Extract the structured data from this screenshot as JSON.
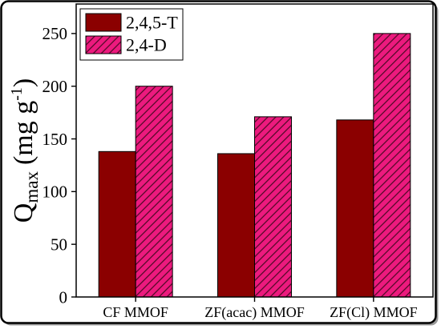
{
  "chart_data": {
    "type": "bar",
    "ylabel": {
      "base": "Q",
      "subscript": "max",
      "unit": "(mg g",
      "unit_superscript": "-1",
      "unit_close": ")"
    },
    "categories": [
      "CF MMOF",
      "ZF(acac) MMOF",
      "ZF(Cl) MMOF"
    ],
    "series": [
      {
        "name": "2,4,5-T",
        "values": [
          138,
          136,
          168
        ],
        "color": "#8B0000",
        "hatched": false
      },
      {
        "name": "2,4-D",
        "values": [
          200,
          171,
          250
        ],
        "color": "#EC1A7E",
        "hatched": true,
        "hatch_color": "#4A0822"
      }
    ],
    "ylim": [
      0,
      278
    ],
    "yticks": [
      0,
      50,
      100,
      150,
      200,
      250
    ],
    "grid": false,
    "legend": "top-left"
  }
}
